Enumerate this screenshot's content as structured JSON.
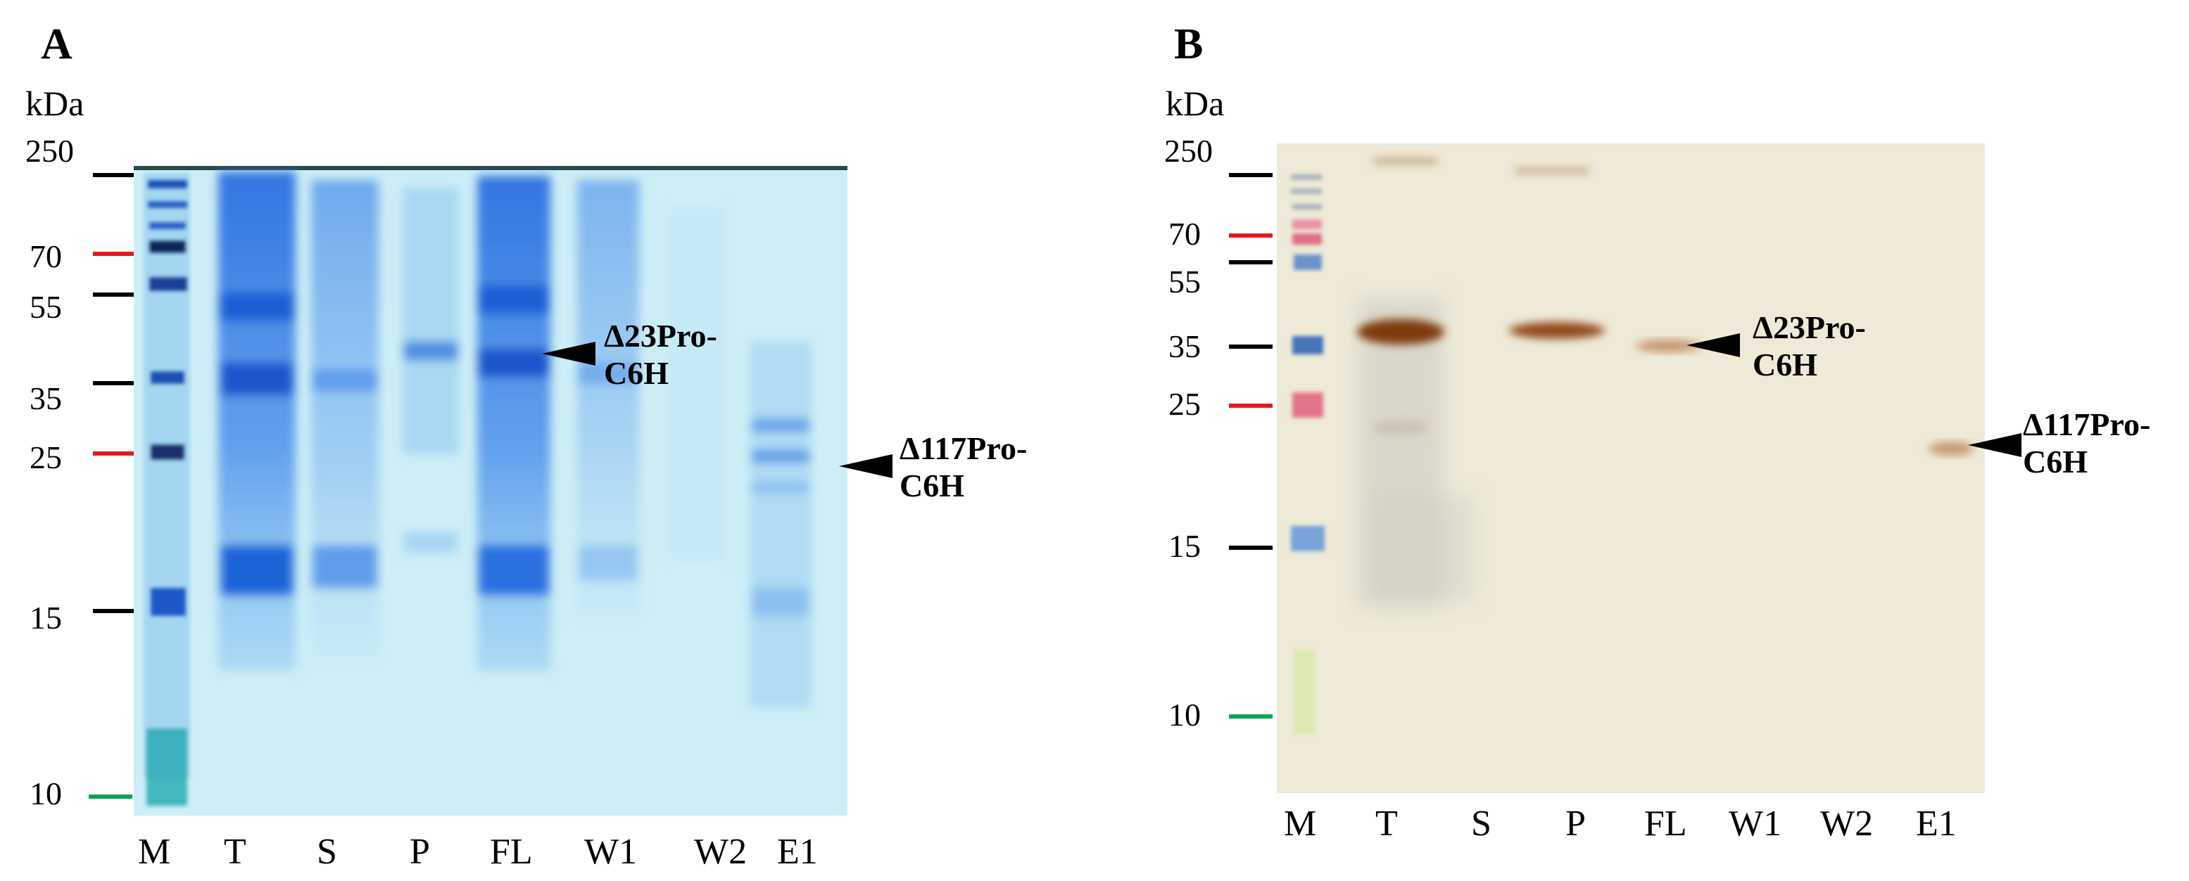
{
  "panels": [
    {
      "label": "A",
      "unit": "kDa",
      "markers": [
        {
          "value": "250",
          "color": "#000000"
        },
        {
          "value": "70",
          "color": "#e31a1c"
        },
        {
          "value": "55",
          "color": "#000000"
        },
        {
          "value": "35",
          "color": "#000000"
        },
        {
          "value": "25",
          "color": "#e31a1c"
        },
        {
          "value": "15",
          "color": "#000000"
        },
        {
          "value": "10",
          "color": "#00a651"
        }
      ],
      "lanes": [
        "M",
        "T",
        "S",
        "P",
        "FL",
        "W1",
        "W2",
        "E1"
      ],
      "annotations": [
        {
          "line1": "Δ23Pro-",
          "line2": "C6H"
        },
        {
          "line1": "Δ117Pro-",
          "line2": "C6H"
        }
      ],
      "gel_color": "#cdeef6",
      "stain_color": "#1e63d6"
    },
    {
      "label": "B",
      "unit": "kDa",
      "markers": [
        {
          "value": "250",
          "color": "#000000"
        },
        {
          "value": "70",
          "color": "#e31a1c"
        },
        {
          "value": "55",
          "color": "#000000"
        },
        {
          "value": "35",
          "color": "#000000"
        },
        {
          "value": "25",
          "color": "#e31a1c"
        },
        {
          "value": "15",
          "color": "#000000"
        },
        {
          "value": "10",
          "color": "#00a651"
        }
      ],
      "lanes": [
        "M",
        "T",
        "S",
        "P",
        "FL",
        "W1",
        "W2",
        "E1"
      ],
      "annotations": [
        {
          "line1": "Δ23Pro-",
          "line2": "C6H"
        },
        {
          "line1": "Δ117Pro-",
          "line2": "C6H"
        }
      ],
      "membrane_color": "#eeead7",
      "band_color": "#8b4a1c"
    }
  ]
}
